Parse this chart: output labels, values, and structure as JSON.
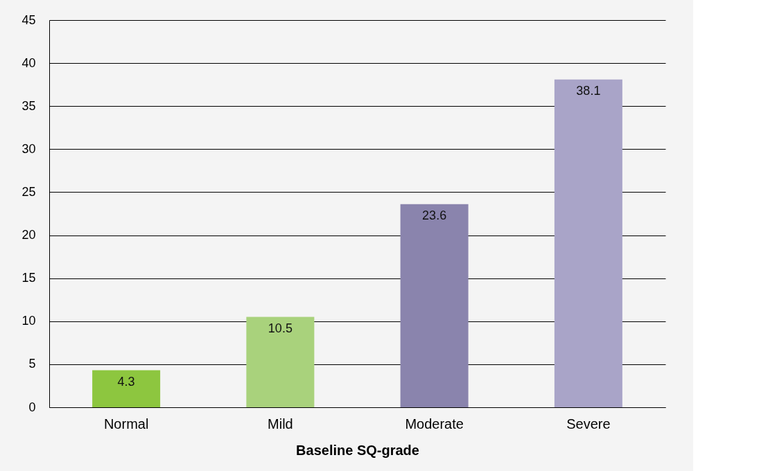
{
  "chart_data": {
    "type": "bar",
    "xlabel": "Baseline SQ-grade",
    "categories": [
      "Normal",
      "Mild",
      "Moderate",
      "Severe"
    ],
    "values": [
      4.3,
      10.5,
      23.6,
      38.1
    ],
    "colors": [
      "#8dc63f",
      "#a9d27c",
      "#8a84ad",
      "#a9a4c8"
    ],
    "ylim": [
      0,
      45
    ],
    "yticks": [
      0,
      5,
      10,
      15,
      20,
      25,
      30,
      35,
      40,
      45
    ],
    "grid": "y",
    "data_labels": true
  }
}
